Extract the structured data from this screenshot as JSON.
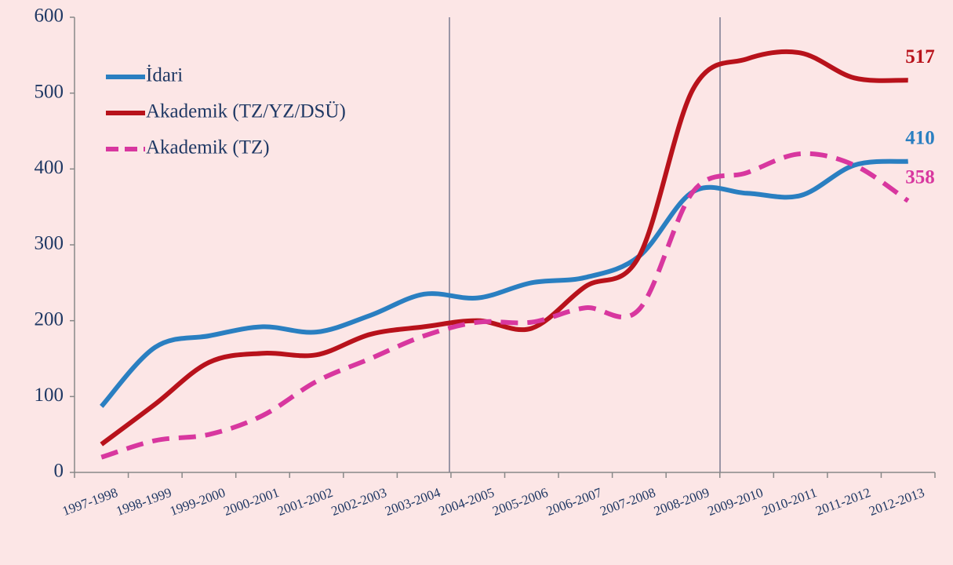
{
  "chart_data": {
    "type": "line",
    "categories": [
      "1997-1998",
      "1998-1999",
      "1999-2000",
      "2000-2001",
      "2001-2002",
      "2002-2003",
      "2003-2004",
      "2004-2005",
      "2005-2006",
      "2006-2007",
      "2007-2008",
      "2008-2009",
      "2009-2010",
      "2010-2011",
      "2011-2012",
      "2012-2013"
    ],
    "series": [
      {
        "name": "İdari",
        "color": "#2a7fc1",
        "dash": false,
        "values": [
          87,
          165,
          180,
          192,
          185,
          207,
          235,
          230,
          250,
          257,
          285,
          370,
          368,
          365,
          405,
          410
        ]
      },
      {
        "name": "Akademik (TZ/YZ/DSÜ)",
        "color": "#b8121b",
        "dash": false,
        "values": [
          37,
          90,
          145,
          157,
          155,
          182,
          192,
          200,
          190,
          245,
          285,
          505,
          545,
          553,
          520,
          517
        ]
      },
      {
        "name": "Akademik (TZ)",
        "color": "#d8379f",
        "dash": true,
        "values": [
          20,
          42,
          50,
          75,
          120,
          150,
          180,
          198,
          198,
          217,
          215,
          370,
          395,
          420,
          405,
          358
        ]
      }
    ],
    "ylim": [
      0,
      600
    ],
    "yticks": [
      0,
      100,
      200,
      300,
      400,
      500,
      600
    ],
    "legend": "upper left"
  }
}
